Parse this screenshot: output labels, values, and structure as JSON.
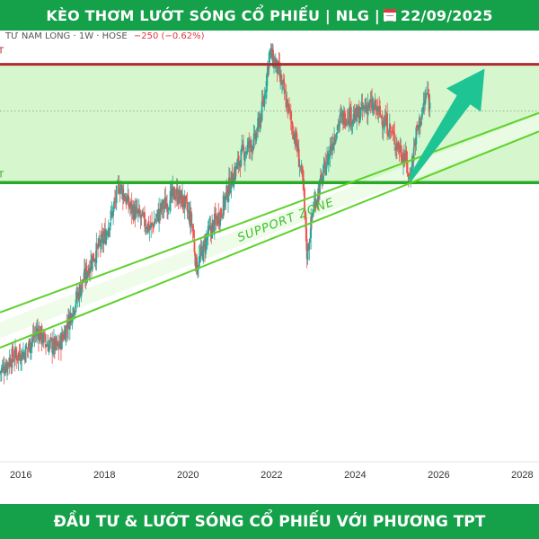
{
  "header": {
    "title_prefix": "KÈO THƠM LƯỚT SÓNG CỔ PHIẾU | NLG |",
    "date": "22/09/2025"
  },
  "symbol_bar": {
    "name": "TƯ NAM LONG · 1W · HOSE",
    "change": "−250 (−0.62%)"
  },
  "footer": {
    "text": "ĐẦU TƯ & LƯỚT SÓNG CỔ PHIẾU VỚI PHƯƠNG TPT"
  },
  "colors": {
    "banner": "#15a04a",
    "zone_fill": "#d6f7cd",
    "resistance": "#b02a30",
    "support": "#2aa82a",
    "channel": "#5ed12c",
    "arrow": "#1ec493",
    "up_candle": "#26a69a",
    "down_candle": "#ef5350"
  },
  "annotations": {
    "support_zone_label": "SUPPORT ZONE",
    "left_label_top": "T",
    "left_label_support": "T"
  },
  "chart_data": {
    "type": "candlestick",
    "timeframe": "1W",
    "x_ticks": [
      "2016",
      "2018",
      "2020",
      "2022",
      "2024",
      "2026",
      "2028"
    ],
    "xlim": [
      2015.5,
      2028.4
    ],
    "ylim": [
      13,
      60
    ],
    "price_path": [
      [
        2015.5,
        22.8
      ],
      [
        2015.8,
        24.5
      ],
      [
        2016.1,
        25.0
      ],
      [
        2016.4,
        27.5
      ],
      [
        2016.6,
        26.0
      ],
      [
        2016.9,
        25.5
      ],
      [
        2017.1,
        28.0
      ],
      [
        2017.4,
        32.0
      ],
      [
        2017.7,
        35.5
      ],
      [
        2018.0,
        38.0
      ],
      [
        2018.2,
        41.0
      ],
      [
        2018.35,
        44.0
      ],
      [
        2018.6,
        41.5
      ],
      [
        2018.9,
        40.0
      ],
      [
        2019.1,
        39.0
      ],
      [
        2019.4,
        41.5
      ],
      [
        2019.7,
        43.0
      ],
      [
        2019.9,
        42.0
      ],
      [
        2020.1,
        39.5
      ],
      [
        2020.2,
        34.5
      ],
      [
        2020.5,
        38.5
      ],
      [
        2020.8,
        41.0
      ],
      [
        2021.0,
        44.0
      ],
      [
        2021.3,
        47.5
      ],
      [
        2021.6,
        49.0
      ],
      [
        2021.8,
        53.0
      ],
      [
        2021.95,
        59.0
      ],
      [
        2022.15,
        57.0
      ],
      [
        2022.4,
        52.5
      ],
      [
        2022.6,
        48.5
      ],
      [
        2022.75,
        44.0
      ],
      [
        2022.85,
        36.0
      ],
      [
        2023.0,
        41.5
      ],
      [
        2023.2,
        44.5
      ],
      [
        2023.4,
        48.0
      ],
      [
        2023.6,
        51.0
      ],
      [
        2023.8,
        52.0
      ],
      [
        2024.0,
        51.5
      ],
      [
        2024.3,
        53.0
      ],
      [
        2024.5,
        52.5
      ],
      [
        2024.8,
        50.5
      ],
      [
        2025.0,
        48.5
      ],
      [
        2025.2,
        47.0
      ],
      [
        2025.3,
        44.5
      ],
      [
        2025.45,
        49.5
      ],
      [
        2025.6,
        52.0
      ],
      [
        2025.72,
        54.5
      ],
      [
        2025.8,
        52.5
      ]
    ],
    "levels": {
      "resistance": 57.6,
      "support": 44.2,
      "dotted": 52.3
    },
    "channel_upper": [
      [
        2015.5,
        29.5
      ],
      [
        2028.4,
        52.1
      ]
    ],
    "channel_lower": [
      [
        2015.5,
        25.5
      ],
      [
        2028.4,
        50.0
      ]
    ],
    "support_zone_band": [
      [
        2015.5,
        27.5
      ],
      [
        2028.4,
        51.0
      ]
    ],
    "arrow": {
      "from": [
        2025.3,
        44.5
      ],
      "to": [
        2027.1,
        57.1
      ]
    }
  }
}
